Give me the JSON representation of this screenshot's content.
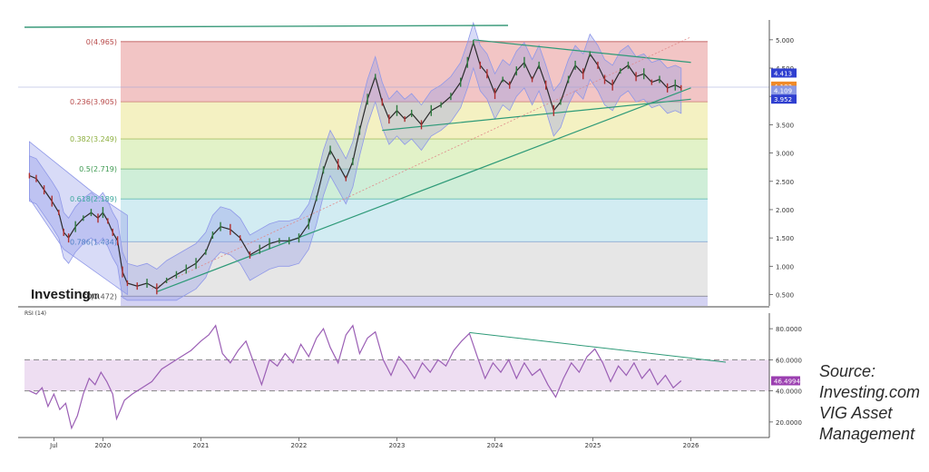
{
  "chart_data": [
    {
      "type": "line",
      "subtype": "candlestick",
      "x_axis": {
        "labels": [
          "Jul",
          "2020",
          "2021",
          "2022",
          "2023",
          "2024",
          "2025",
          "2026"
        ]
      },
      "y_axis": {
        "labels": [
          "5.000",
          "4.500",
          "4.000",
          "3.500",
          "3.000",
          "2.500",
          "2.000",
          "1.500",
          "1.000",
          "0.500"
        ],
        "ylim": [
          0.3,
          5.35
        ]
      },
      "fibonacci_levels": [
        {
          "label": "0(4.965)",
          "value": 4.965,
          "color": "#b84a4a",
          "band_color": "#f2c5c5"
        },
        {
          "label": "0.236(3.905)",
          "value": 3.905,
          "color": "#b84a4a",
          "band_color": "#f4f1c2"
        },
        {
          "label": "0.382(3.249)",
          "value": 3.249,
          "color": "#8cae3e",
          "band_color": "#e2f2c8"
        },
        {
          "label": "0.5(2.719)",
          "value": 2.719,
          "color": "#3f9a52",
          "band_color": "#cfeed8"
        },
        {
          "label": "0.618(2.189)",
          "value": 2.189,
          "color": "#3ba79c",
          "band_color": "#d2ecf2"
        },
        {
          "label": "0.786(1.434)",
          "value": 1.434,
          "color": "#4f7fc4",
          "band_color": "#e6e6e6"
        },
        {
          "label": "1(0.472)",
          "value": 0.472,
          "color": "#555555",
          "band_color": "#d3d2f2"
        }
      ],
      "price_tags": [
        {
          "value": "4.413",
          "color": "#2f3fd0"
        },
        {
          "value": "4.182",
          "color": "#f08a28"
        },
        {
          "value": "4.109",
          "color": "#8c9ae4"
        },
        {
          "value": "3.952",
          "color": "#2f3fd0"
        }
      ],
      "price_series": {
        "name": "",
        "points": [
          [
            2019.25,
            2.6
          ],
          [
            2019.32,
            2.55
          ],
          [
            2019.4,
            2.35
          ],
          [
            2019.48,
            2.15
          ],
          [
            2019.55,
            1.95
          ],
          [
            2019.6,
            1.6
          ],
          [
            2019.65,
            1.5
          ],
          [
            2019.72,
            1.7
          ],
          [
            2019.8,
            1.85
          ],
          [
            2019.88,
            1.95
          ],
          [
            2019.95,
            1.85
          ],
          [
            2020.0,
            1.95
          ],
          [
            2020.05,
            1.8
          ],
          [
            2020.1,
            1.6
          ],
          [
            2020.15,
            1.45
          ],
          [
            2020.2,
            0.9
          ],
          [
            2020.25,
            0.7
          ],
          [
            2020.35,
            0.65
          ],
          [
            2020.45,
            0.7
          ],
          [
            2020.55,
            0.6
          ],
          [
            2020.65,
            0.75
          ],
          [
            2020.75,
            0.85
          ],
          [
            2020.85,
            0.95
          ],
          [
            2020.95,
            1.05
          ],
          [
            2021.05,
            1.25
          ],
          [
            2021.12,
            1.55
          ],
          [
            2021.2,
            1.7
          ],
          [
            2021.3,
            1.65
          ],
          [
            2021.4,
            1.5
          ],
          [
            2021.5,
            1.2
          ],
          [
            2021.6,
            1.3
          ],
          [
            2021.7,
            1.4
          ],
          [
            2021.8,
            1.45
          ],
          [
            2021.9,
            1.45
          ],
          [
            2022.0,
            1.5
          ],
          [
            2022.1,
            1.75
          ],
          [
            2022.18,
            2.2
          ],
          [
            2022.25,
            2.7
          ],
          [
            2022.32,
            3.05
          ],
          [
            2022.4,
            2.8
          ],
          [
            2022.48,
            2.55
          ],
          [
            2022.55,
            2.85
          ],
          [
            2022.62,
            3.4
          ],
          [
            2022.7,
            3.95
          ],
          [
            2022.78,
            4.35
          ],
          [
            2022.85,
            3.9
          ],
          [
            2022.92,
            3.6
          ],
          [
            2023.0,
            3.75
          ],
          [
            2023.08,
            3.6
          ],
          [
            2023.15,
            3.7
          ],
          [
            2023.25,
            3.5
          ],
          [
            2023.35,
            3.75
          ],
          [
            2023.45,
            3.85
          ],
          [
            2023.55,
            4.0
          ],
          [
            2023.65,
            4.25
          ],
          [
            2023.72,
            4.6
          ],
          [
            2023.78,
            4.95
          ],
          [
            2023.85,
            4.55
          ],
          [
            2023.92,
            4.4
          ],
          [
            2024.0,
            4.05
          ],
          [
            2024.08,
            4.3
          ],
          [
            2024.15,
            4.2
          ],
          [
            2024.22,
            4.45
          ],
          [
            2024.3,
            4.6
          ],
          [
            2024.38,
            4.3
          ],
          [
            2024.45,
            4.55
          ],
          [
            2024.52,
            4.2
          ],
          [
            2024.6,
            3.75
          ],
          [
            2024.67,
            3.9
          ],
          [
            2024.75,
            4.3
          ],
          [
            2024.82,
            4.55
          ],
          [
            2024.9,
            4.4
          ],
          [
            2024.97,
            4.75
          ],
          [
            2025.05,
            4.55
          ],
          [
            2025.12,
            4.3
          ],
          [
            2025.2,
            4.2
          ],
          [
            2025.28,
            4.45
          ],
          [
            2025.36,
            4.55
          ],
          [
            2025.44,
            4.35
          ],
          [
            2025.52,
            4.4
          ],
          [
            2025.6,
            4.25
          ],
          [
            2025.68,
            4.3
          ],
          [
            2025.76,
            4.15
          ],
          [
            2025.84,
            4.2
          ],
          [
            2025.9,
            4.15
          ]
        ]
      },
      "line_color": "#2a2a2a",
      "envelope_color": "#8f98e8"
    },
    {
      "type": "line",
      "label": "RSI (14)",
      "y_axis": {
        "labels": [
          "80.0000",
          "60.0000",
          "40.0000",
          "20.0000"
        ],
        "ylim": [
          10,
          90
        ]
      },
      "band": [
        40,
        60
      ],
      "last_value": "46.4994",
      "series": [
        [
          2019.25,
          40
        ],
        [
          2019.32,
          38
        ],
        [
          2019.38,
          42
        ],
        [
          2019.44,
          30
        ],
        [
          2019.5,
          38
        ],
        [
          2019.56,
          28
        ],
        [
          2019.62,
          32
        ],
        [
          2019.68,
          16
        ],
        [
          2019.74,
          24
        ],
        [
          2019.8,
          38
        ],
        [
          2019.86,
          48
        ],
        [
          2019.92,
          44
        ],
        [
          2019.98,
          52
        ],
        [
          2020.04,
          46
        ],
        [
          2020.1,
          38
        ],
        [
          2020.14,
          22
        ],
        [
          2020.18,
          28
        ],
        [
          2020.22,
          34
        ],
        [
          2020.3,
          38
        ],
        [
          2020.4,
          42
        ],
        [
          2020.5,
          46
        ],
        [
          2020.6,
          54
        ],
        [
          2020.7,
          58
        ],
        [
          2020.8,
          62
        ],
        [
          2020.9,
          66
        ],
        [
          2021.0,
          72
        ],
        [
          2021.08,
          76
        ],
        [
          2021.15,
          82
        ],
        [
          2021.22,
          64
        ],
        [
          2021.3,
          58
        ],
        [
          2021.38,
          66
        ],
        [
          2021.46,
          72
        ],
        [
          2021.54,
          58
        ],
        [
          2021.62,
          44
        ],
        [
          2021.7,
          60
        ],
        [
          2021.78,
          56
        ],
        [
          2021.86,
          64
        ],
        [
          2021.94,
          58
        ],
        [
          2022.02,
          70
        ],
        [
          2022.1,
          62
        ],
        [
          2022.18,
          74
        ],
        [
          2022.25,
          80
        ],
        [
          2022.32,
          68
        ],
        [
          2022.4,
          58
        ],
        [
          2022.48,
          76
        ],
        [
          2022.55,
          82
        ],
        [
          2022.62,
          64
        ],
        [
          2022.7,
          74
        ],
        [
          2022.78,
          78
        ],
        [
          2022.86,
          60
        ],
        [
          2022.94,
          50
        ],
        [
          2023.02,
          62
        ],
        [
          2023.1,
          56
        ],
        [
          2023.18,
          48
        ],
        [
          2023.26,
          58
        ],
        [
          2023.34,
          52
        ],
        [
          2023.42,
          60
        ],
        [
          2023.5,
          56
        ],
        [
          2023.58,
          66
        ],
        [
          2023.66,
          72
        ],
        [
          2023.74,
          77
        ],
        [
          2023.82,
          62
        ],
        [
          2023.9,
          48
        ],
        [
          2023.98,
          58
        ],
        [
          2024.06,
          52
        ],
        [
          2024.14,
          60
        ],
        [
          2024.22,
          48
        ],
        [
          2024.3,
          58
        ],
        [
          2024.38,
          50
        ],
        [
          2024.46,
          54
        ],
        [
          2024.54,
          44
        ],
        [
          2024.62,
          36
        ],
        [
          2024.7,
          48
        ],
        [
          2024.78,
          58
        ],
        [
          2024.86,
          52
        ],
        [
          2024.94,
          62
        ],
        [
          2025.02,
          67
        ],
        [
          2025.1,
          58
        ],
        [
          2025.18,
          46
        ],
        [
          2025.26,
          56
        ],
        [
          2025.34,
          50
        ],
        [
          2025.42,
          58
        ],
        [
          2025.5,
          48
        ],
        [
          2025.58,
          54
        ],
        [
          2025.66,
          44
        ],
        [
          2025.74,
          50
        ],
        [
          2025.82,
          42
        ],
        [
          2025.9,
          46.5
        ]
      ],
      "line_color": "#9b5fb5"
    }
  ],
  "watermark": {
    "brand": "Investing",
    "suffix": ".com"
  },
  "rsi_label": "RSI (14)",
  "source": {
    "line1": "Source:",
    "line2": "Investing.com",
    "line3": "VIG Asset",
    "line4": "Management"
  }
}
